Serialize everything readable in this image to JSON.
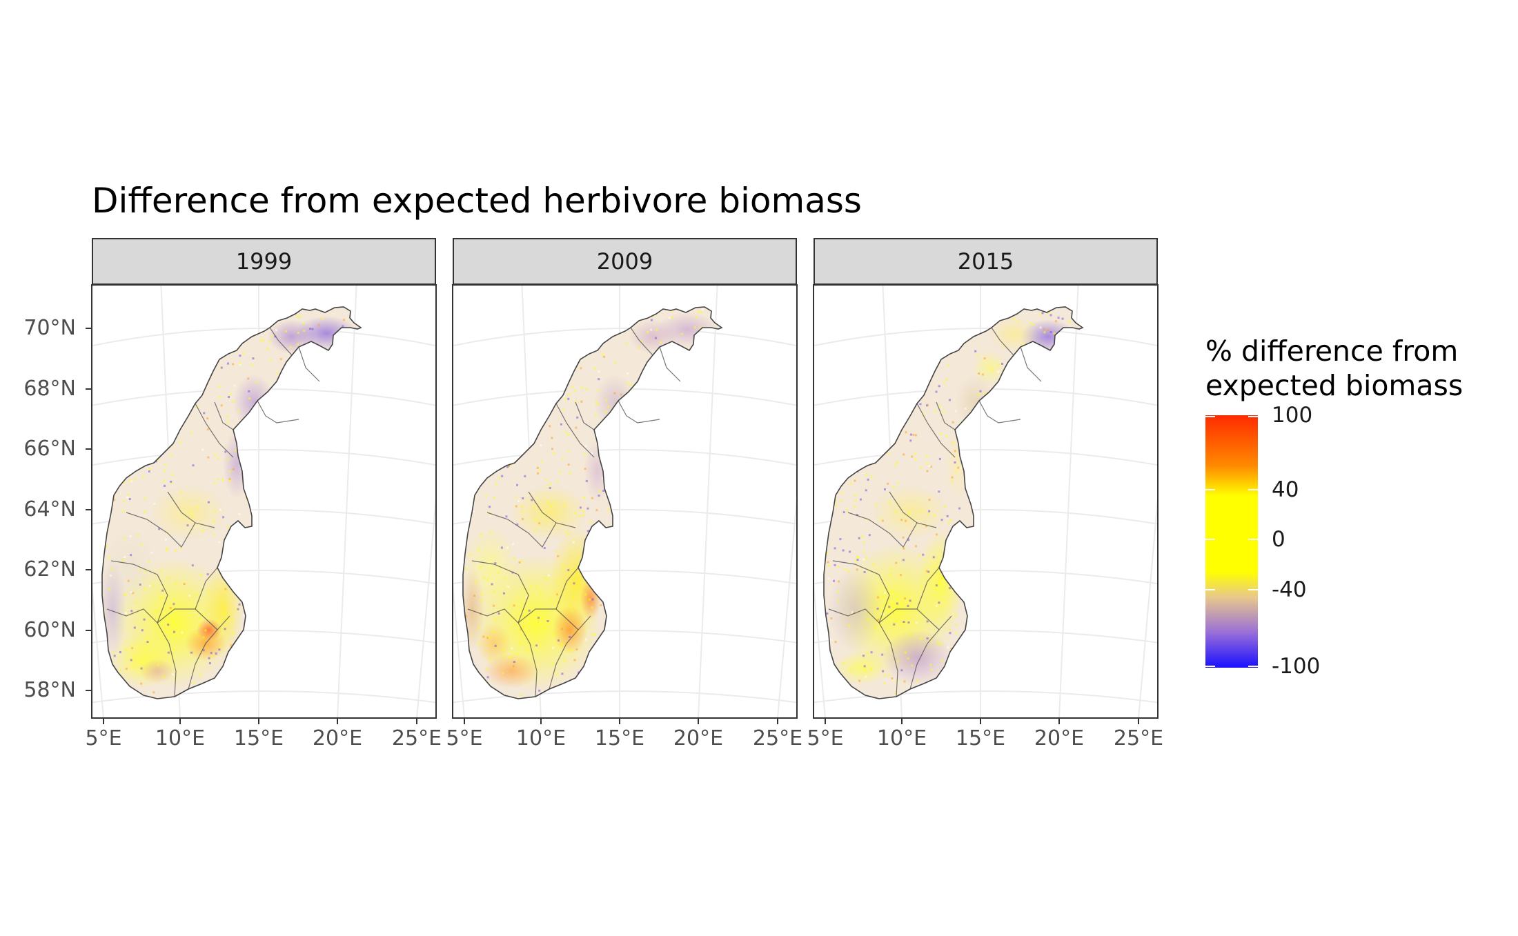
{
  "title": "Difference from expected herbivore biomass",
  "panels": [
    {
      "label": "1999"
    },
    {
      "label": "2009"
    },
    {
      "label": "2015"
    }
  ],
  "axes": {
    "y_ticks": [
      "70°N",
      "68°N",
      "66°N",
      "64°N",
      "62°N",
      "60°N",
      "58°N"
    ],
    "x_ticks": [
      "5°E",
      "10°E",
      "15°E",
      "20°E",
      "25°E"
    ]
  },
  "legend": {
    "title_line1": "% difference from",
    "title_line2": "expected biomass",
    "labels": [
      "100",
      "40",
      "0",
      "-40",
      "-100"
    ],
    "colors": [
      "#ff2a00",
      "#ff8a00",
      "#ffff00",
      "#e8c98a",
      "#9a6fd8",
      "#1a10ff"
    ],
    "range": [
      -100,
      100
    ]
  },
  "colors": {
    "strip_fill": "#d9d9d9",
    "panel_border": "#333333",
    "grid": "#ebebeb",
    "boundary": "#555555"
  }
}
